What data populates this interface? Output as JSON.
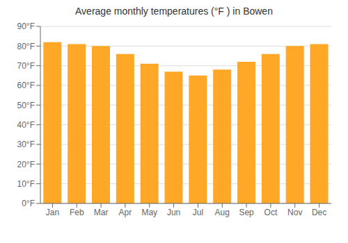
{
  "chart_data": {
    "type": "bar",
    "title": "Average monthly temperatures (°F ) in Bowen",
    "categories": [
      "Jan",
      "Feb",
      "Mar",
      "Apr",
      "May",
      "Jun",
      "Jul",
      "Aug",
      "Sep",
      "Oct",
      "Nov",
      "Dec"
    ],
    "values": [
      82,
      81,
      80,
      76,
      71,
      67,
      65,
      68,
      72,
      76,
      80,
      81
    ],
    "color": "#FFA726",
    "ylim": [
      0,
      90
    ],
    "yticks": [
      {
        "value": 0,
        "label": "0°F"
      },
      {
        "value": 10,
        "label": "10°F"
      },
      {
        "value": 20,
        "label": "20°F"
      },
      {
        "value": 30,
        "label": "30°F"
      },
      {
        "value": 40,
        "label": "40°F"
      },
      {
        "value": 50,
        "label": "50°F"
      },
      {
        "value": 60,
        "label": "60°F"
      },
      {
        "value": 70,
        "label": "70°F"
      },
      {
        "value": 80,
        "label": "80°F"
      },
      {
        "value": 90,
        "label": "90°F"
      }
    ],
    "grid": true
  }
}
